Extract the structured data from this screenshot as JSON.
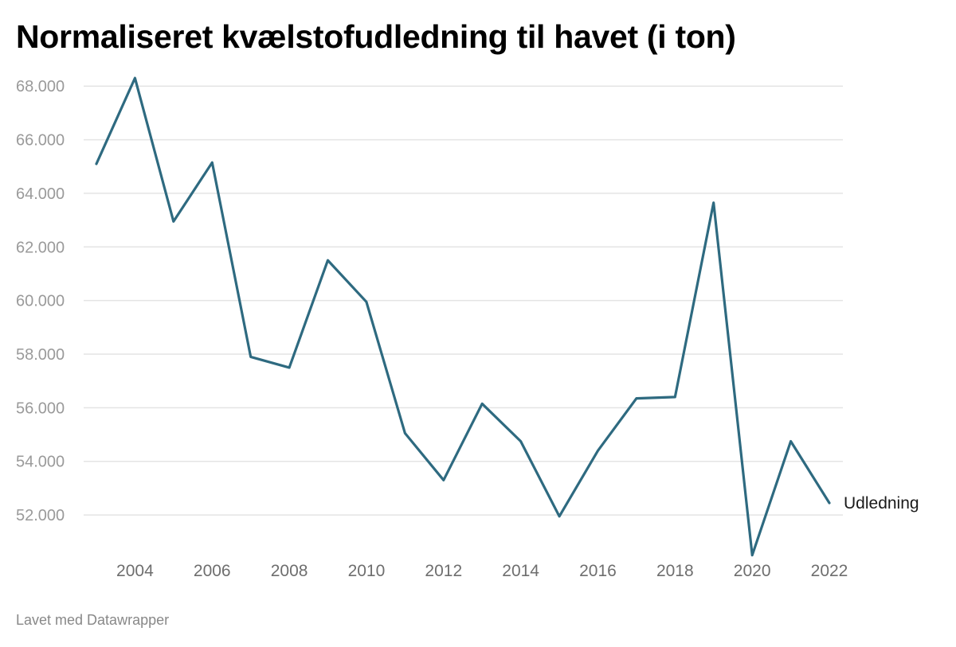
{
  "chart_data": {
    "type": "line",
    "title": "Normaliseret kvælstofudledning til havet (i ton)",
    "x": [
      2003,
      2004,
      2005,
      2006,
      2007,
      2008,
      2009,
      2010,
      2011,
      2012,
      2013,
      2014,
      2015,
      2016,
      2017,
      2018,
      2019,
      2020,
      2021,
      2022
    ],
    "series": [
      {
        "name": "Udledning",
        "color": "#2e6a80",
        "values": [
          65100,
          68300,
          62950,
          65150,
          57900,
          57500,
          61500,
          59950,
          55050,
          53300,
          56150,
          54750,
          51950,
          54400,
          56350,
          56400,
          63650,
          50500,
          54750,
          52450
        ]
      }
    ],
    "ylim": [
      50400,
      68600
    ],
    "yticks": [
      52000,
      54000,
      56000,
      58000,
      60000,
      62000,
      64000,
      66000,
      68000
    ],
    "ytick_labels": [
      "52.000",
      "54.000",
      "56.000",
      "58.000",
      "60.000",
      "62.000",
      "64.000",
      "66.000",
      "68.000"
    ],
    "xticks": [
      2004,
      2006,
      2008,
      2010,
      2012,
      2014,
      2016,
      2018,
      2020,
      2022
    ],
    "xtick_labels": [
      "2004",
      "2006",
      "2008",
      "2010",
      "2012",
      "2014",
      "2016",
      "2018",
      "2020",
      "2022"
    ],
    "xlabel": "",
    "ylabel": "",
    "grid": true,
    "gridline_color": "#e4e4e4",
    "legend": "direct-label-right"
  },
  "footer": {
    "credit": "Lavet med Datawrapper"
  }
}
